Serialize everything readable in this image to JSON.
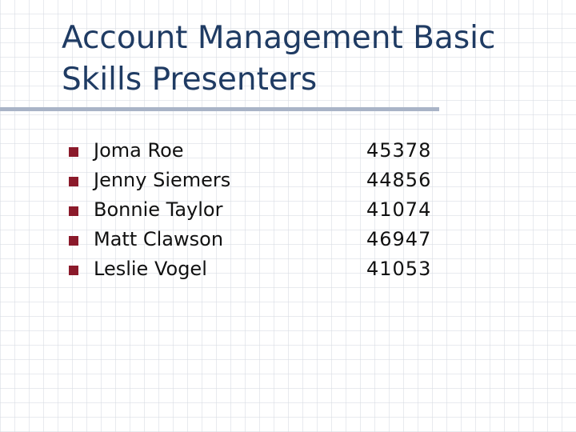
{
  "slide": {
    "title_line1": "Account Management Basic",
    "title_line2": "Skills Presenters",
    "presenters": [
      {
        "name": "Joma Roe",
        "number": "45378"
      },
      {
        "name": "Jenny Siemers",
        "number": "44856"
      },
      {
        "name": "Bonnie Taylor",
        "number": "41074"
      },
      {
        "name": "Matt Clawson",
        "number": "46947"
      },
      {
        "name": "Leslie Vogel",
        "number": "41053"
      }
    ]
  },
  "colors": {
    "title": "#1f3b63",
    "bullet": "#8b1a2b",
    "rule": "#a9b4c7",
    "text": "#111111"
  }
}
